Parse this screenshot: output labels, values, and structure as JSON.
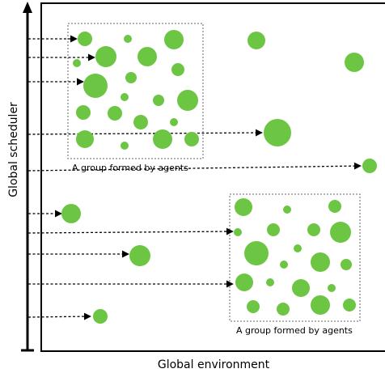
{
  "axes": {
    "y_label": "Global scheduler",
    "x_label": "Global environment"
  },
  "groups": [
    {
      "label": "A group formed by agents"
    },
    {
      "label": "A group formed by agents"
    }
  ],
  "colors": {
    "agent": "#6cc644",
    "line": "#000000",
    "group_border": "#666666",
    "background": "#ffffff"
  },
  "counts": {
    "group_1_agents": 22,
    "group_2_agents": 25,
    "free_agents": 7,
    "scheduler_arrows": 11
  }
}
